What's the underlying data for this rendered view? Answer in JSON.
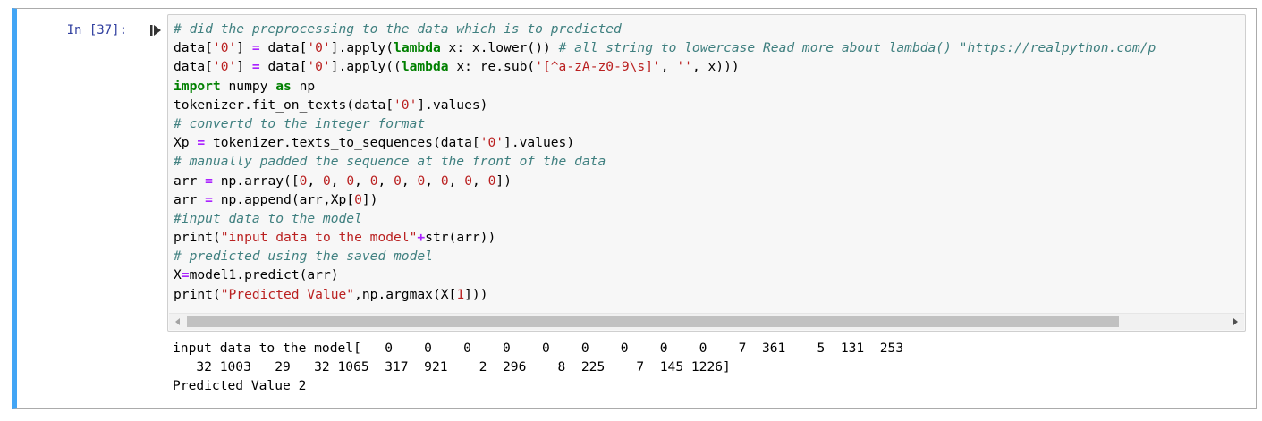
{
  "cell": {
    "prompt": "In [37]:",
    "accent_color": "#42a5f5",
    "run_icon": "run-cell-icon"
  },
  "code_lines": [
    [
      {
        "t": "c",
        "v": "# did the preprocessing to the data which is to predicted"
      }
    ],
    [
      {
        "t": "n",
        "v": "data["
      },
      {
        "t": "s",
        "v": "'0'"
      },
      {
        "t": "n",
        "v": "] "
      },
      {
        "t": "o",
        "v": "="
      },
      {
        "t": "n",
        "v": " data["
      },
      {
        "t": "s",
        "v": "'0'"
      },
      {
        "t": "n",
        "v": "].apply("
      },
      {
        "t": "k",
        "v": "lambda"
      },
      {
        "t": "n",
        "v": " x: x.lower()) "
      },
      {
        "t": "c",
        "v": "# all string to lowercase Read more about lambda() \"https://realpython.com/p"
      }
    ],
    [
      {
        "t": "n",
        "v": "data["
      },
      {
        "t": "s",
        "v": "'0'"
      },
      {
        "t": "n",
        "v": "] "
      },
      {
        "t": "o",
        "v": "="
      },
      {
        "t": "n",
        "v": " data["
      },
      {
        "t": "s",
        "v": "'0'"
      },
      {
        "t": "n",
        "v": "].apply(("
      },
      {
        "t": "k",
        "v": "lambda"
      },
      {
        "t": "n",
        "v": " x: re.sub("
      },
      {
        "t": "s",
        "v": "'[^a-zA-z0-9\\s]'"
      },
      {
        "t": "n",
        "v": ", "
      },
      {
        "t": "s",
        "v": "''"
      },
      {
        "t": "n",
        "v": ", x)))"
      }
    ],
    [
      {
        "t": "k",
        "v": "import"
      },
      {
        "t": "n",
        "v": " numpy "
      },
      {
        "t": "k",
        "v": "as"
      },
      {
        "t": "n",
        "v": " np"
      }
    ],
    [
      {
        "t": "n",
        "v": "tokenizer.fit_on_texts(data["
      },
      {
        "t": "s",
        "v": "'0'"
      },
      {
        "t": "n",
        "v": "].values)"
      }
    ],
    [
      {
        "t": "c",
        "v": "# convertd to the integer format"
      }
    ],
    [
      {
        "t": "n",
        "v": "Xp "
      },
      {
        "t": "o",
        "v": "="
      },
      {
        "t": "n",
        "v": " tokenizer.texts_to_sequences(data["
      },
      {
        "t": "s",
        "v": "'0'"
      },
      {
        "t": "n",
        "v": "].values)"
      }
    ],
    [
      {
        "t": "c",
        "v": "# manually padded the sequence at the front of the data"
      }
    ],
    [
      {
        "t": "n",
        "v": "arr "
      },
      {
        "t": "o",
        "v": "="
      },
      {
        "t": "n",
        "v": " np.array(["
      },
      {
        "t": "s",
        "v": "0"
      },
      {
        "t": "n",
        "v": ", "
      },
      {
        "t": "s",
        "v": "0"
      },
      {
        "t": "n",
        "v": ", "
      },
      {
        "t": "s",
        "v": "0"
      },
      {
        "t": "n",
        "v": ", "
      },
      {
        "t": "s",
        "v": "0"
      },
      {
        "t": "n",
        "v": ", "
      },
      {
        "t": "s",
        "v": "0"
      },
      {
        "t": "n",
        "v": ", "
      },
      {
        "t": "s",
        "v": "0"
      },
      {
        "t": "n",
        "v": ", "
      },
      {
        "t": "s",
        "v": "0"
      },
      {
        "t": "n",
        "v": ", "
      },
      {
        "t": "s",
        "v": "0"
      },
      {
        "t": "n",
        "v": ", "
      },
      {
        "t": "s",
        "v": "0"
      },
      {
        "t": "n",
        "v": "])"
      }
    ],
    [
      {
        "t": "n",
        "v": "arr "
      },
      {
        "t": "o",
        "v": "="
      },
      {
        "t": "n",
        "v": " np.append(arr,Xp["
      },
      {
        "t": "s",
        "v": "0"
      },
      {
        "t": "n",
        "v": "])"
      }
    ],
    [
      {
        "t": "c",
        "v": "#input data to the model"
      }
    ],
    [
      {
        "t": "n",
        "v": "print("
      },
      {
        "t": "s",
        "v": "\"input data to the model\""
      },
      {
        "t": "o",
        "v": "+"
      },
      {
        "t": "n",
        "v": "str(arr))"
      }
    ],
    [
      {
        "t": "c",
        "v": "# predicted using the saved model"
      }
    ],
    [
      {
        "t": "n",
        "v": "X"
      },
      {
        "t": "o",
        "v": "="
      },
      {
        "t": "n",
        "v": "model1.predict(arr)"
      }
    ],
    [
      {
        "t": "n",
        "v": "print("
      },
      {
        "t": "s",
        "v": "\"Predicted Value\""
      },
      {
        "t": "n",
        "v": ",np.argmax(X["
      },
      {
        "t": "s",
        "v": "1"
      },
      {
        "t": "n",
        "v": "]))"
      }
    ]
  ],
  "output_lines": [
    "input data to the model[   0    0    0    0    0    0    0    0    0    7  361    5  131  253",
    "   32 1003   29   32 1065  317  921    2  296    8  225    7  145 1226]",
    "Predicted Value 2"
  ],
  "scrollbar": {
    "left_arrow_icon": "scroll-left-icon",
    "right_arrow_icon": "scroll-right-icon",
    "position": 0.0
  }
}
